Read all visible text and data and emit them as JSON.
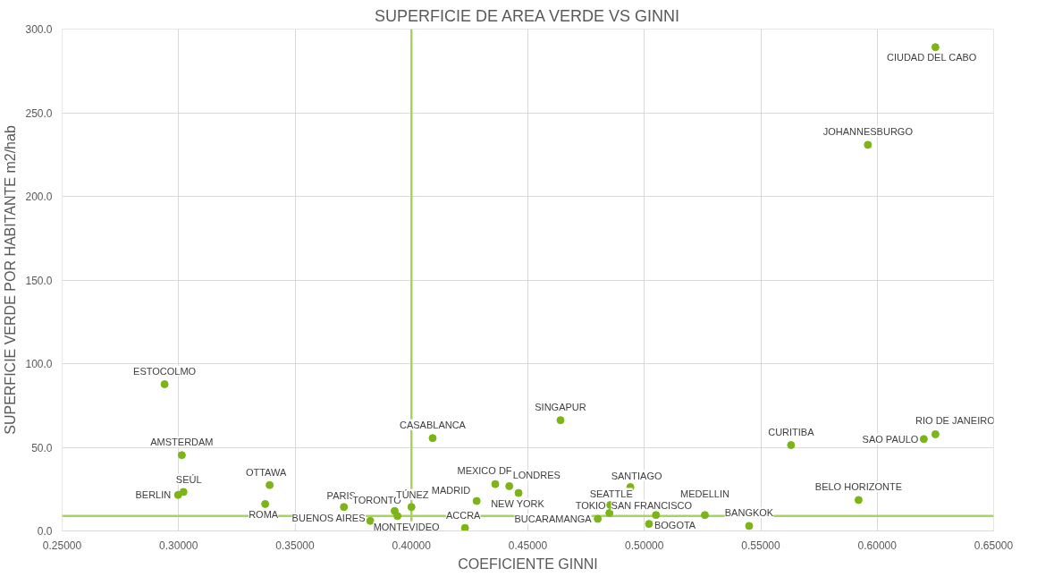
{
  "chart_data": {
    "type": "scatter",
    "title": "SUPERFICIE DE AREA VERDE VS GINNI",
    "xlabel": "COEFICIENTE GINNI",
    "ylabel": "SUPERFICIE VERDE POR HABITANTE m2/hab",
    "series": [
      {
        "color": "#7cb518",
        "x": [
          0.294,
          0.3014,
          0.3021,
          0.2998,
          0.3391,
          0.3372,
          0.371,
          0.3823,
          0.3928,
          0.394,
          0.4,
          0.4091,
          0.423,
          0.428,
          0.436,
          0.442,
          0.446,
          0.464,
          0.494,
          0.4854,
          0.485,
          0.48,
          0.502,
          0.505,
          0.526,
          0.545,
          0.563,
          0.592,
          0.62,
          0.625,
          0.596,
          0.625
        ],
        "values": [
          87.7,
          45.3,
          23.3,
          21.5,
          27.4,
          16.1,
          14.3,
          6.0,
          11.9,
          8.9,
          14.3,
          55.5,
          1.8,
          17.9,
          28.0,
          26.8,
          22.7,
          66.2,
          26.2,
          15.5,
          10.7,
          7.2,
          4.2,
          9.5,
          9.5,
          3.0,
          51.3,
          18.5,
          54.9,
          57.8,
          230.8,
          289.2
        ]
      }
    ],
    "annotations": [
      {
        "text": "ESTOCOLMO",
        "x": 0.294,
        "y": 87.7
      },
      {
        "text": "AMSTERDAM",
        "x": 0.3014,
        "y": 45.3
      },
      {
        "text": "SEÚL",
        "x": 0.3021,
        "y": 23.3
      },
      {
        "text": "BERLIN",
        "x": 0.2998,
        "y": 21.5
      },
      {
        "text": "OTTAWA",
        "x": 0.3391,
        "y": 27.4
      },
      {
        "text": "ROMA",
        "x": 0.3372,
        "y": 16.1
      },
      {
        "text": "PARIS",
        "x": 0.371,
        "y": 14.3
      },
      {
        "text": "BUENOS AIRES",
        "x": 0.3823,
        "y": 6.0
      },
      {
        "text": "TORONTO",
        "x": 0.3928,
        "y": 11.9
      },
      {
        "text": "MONTEVIDEO",
        "x": 0.394,
        "y": 8.9
      },
      {
        "text": "TÚNEZ",
        "x": 0.4,
        "y": 14.3
      },
      {
        "text": "CASABLANCA",
        "x": 0.4091,
        "y": 55.5
      },
      {
        "text": "ACCRA",
        "x": 0.423,
        "y": 1.8
      },
      {
        "text": "MADRID",
        "x": 0.428,
        "y": 17.9
      },
      {
        "text": "MEXICO DF",
        "x": 0.436,
        "y": 28.0
      },
      {
        "text": "LONDRES",
        "x": 0.442,
        "y": 26.8
      },
      {
        "text": "NEW YORK",
        "x": 0.446,
        "y": 22.7
      },
      {
        "text": "SINGAPUR",
        "x": 0.464,
        "y": 66.2
      },
      {
        "text": "SANTIAGO",
        "x": 0.494,
        "y": 26.2
      },
      {
        "text": "SEATTLE",
        "x": 0.4854,
        "y": 15.5
      },
      {
        "text": "TOKIO",
        "x": 0.485,
        "y": 10.7
      },
      {
        "text": "BUCARAMANGA",
        "x": 0.48,
        "y": 7.2
      },
      {
        "text": "BOGOTA",
        "x": 0.502,
        "y": 4.2
      },
      {
        "text": "SAN FRANCISCO",
        "x": 0.505,
        "y": 9.5
      },
      {
        "text": "MEDELLIN",
        "x": 0.526,
        "y": 9.5
      },
      {
        "text": "BANGKOK",
        "x": 0.545,
        "y": 3.0
      },
      {
        "text": "CURITIBA",
        "x": 0.563,
        "y": 51.3
      },
      {
        "text": "BELO HORIZONTE",
        "x": 0.592,
        "y": 18.5
      },
      {
        "text": "SAO PAULO",
        "x": 0.62,
        "y": 54.9
      },
      {
        "text": "RIO DE JANEIRO",
        "x": 0.625,
        "y": 57.8
      },
      {
        "text": "JOHANNESBURGO",
        "x": 0.596,
        "y": 230.8
      },
      {
        "text": "CIUDAD DEL CABO",
        "x": 0.625,
        "y": 289.2
      }
    ],
    "ref_lines": [
      {
        "axis": "x",
        "value": 0.4,
        "label": null,
        "color": "#a6d55a"
      },
      {
        "axis": "y",
        "value": 8.9,
        "label": null,
        "color": "#a6d55a"
      }
    ],
    "xlim": [
      0.25,
      0.65
    ],
    "ylim": [
      0,
      300
    ],
    "xticks": [
      {
        "value": 0.25,
        "label": "0.25000"
      },
      {
        "value": 0.3,
        "label": "0.30000"
      },
      {
        "value": 0.35,
        "label": "0.35000"
      },
      {
        "value": 0.4,
        "label": "0.40000"
      },
      {
        "value": 0.45,
        "label": "0.45000"
      },
      {
        "value": 0.5,
        "label": "0.50000"
      },
      {
        "value": 0.55,
        "label": "0.55000"
      },
      {
        "value": 0.6,
        "label": "0.60000"
      },
      {
        "value": 0.65,
        "label": "0.65000"
      }
    ],
    "yticks": [
      {
        "value": 0,
        "label": "0.0"
      },
      {
        "value": 50,
        "label": "50.0"
      },
      {
        "value": 100,
        "label": "100.0"
      },
      {
        "value": 150,
        "label": "150.0"
      },
      {
        "value": 200,
        "label": "200.0"
      },
      {
        "value": 250,
        "label": "250.0"
      },
      {
        "value": 300,
        "label": "300.0"
      }
    ],
    "grid": true,
    "marker": "circle"
  }
}
